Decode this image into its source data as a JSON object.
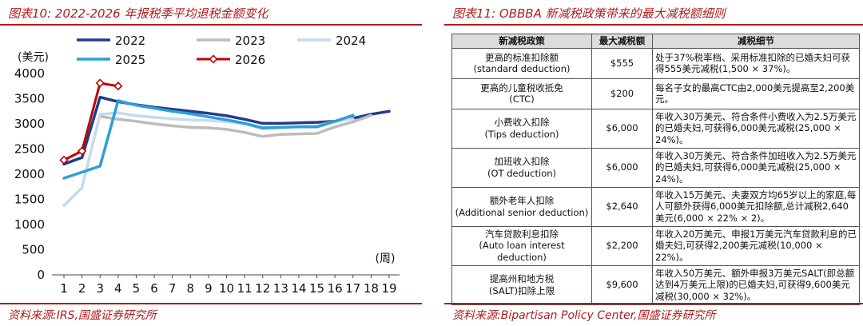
{
  "left": {
    "title": "图表10: 2022-2026 年报税季平均退税金额变化",
    "source": "资料来源:IRS,国盛证券研究所"
  },
  "right": {
    "title": "图表11: OBBBA 新减税政策带来的最大减税额细则",
    "source": "资料来源:Bipartisan Policy Center,国盛证券研究所",
    "table": {
      "headers": [
        "新减税政策",
        "最大减税额",
        "减税细节"
      ],
      "rows": [
        {
          "policy": [
            "更高的标准扣除额",
            "(standard deduction)"
          ],
          "amount": "$555",
          "detail": "处于37%税率档、采用标准扣除的已婚夫妇可获得555美元减税(1,500 × 37%)。"
        },
        {
          "policy": [
            "更高的儿童税收抵免",
            "(CTC)"
          ],
          "amount": "$200",
          "detail": "每名子女的最高CTC由2,000美元提高至2,200美元。"
        },
        {
          "policy": [
            "小费收入扣除",
            "(Tips deduction)"
          ],
          "amount": "$6,000",
          "detail": "年收入30万美元、符合条件小费收入为2.5万美元的已婚夫妇,可获得6,000美元减税(25,000 × 24%)。"
        },
        {
          "policy": [
            "加班收入扣除",
            "(OT deduction)"
          ],
          "amount": "$6,000",
          "detail": "年收入30万美元、符合条件加班收入为2.5万美元的已婚夫妇,可获得6,000美元减税(25,000 × 24%)。"
        },
        {
          "policy": [
            "额外老年人扣除",
            "(Additional senior deduction)"
          ],
          "amount": "$2,640",
          "detail": "年收入15万美元、夫妻双方均65岁以上的家庭,每人可额外获得6,000美元扣除额,总计减税2,640美元(6,000 × 22% × 2)。"
        },
        {
          "policy": [
            "汽车贷款利息扣除",
            "(Auto loan interest",
            "deduction)"
          ],
          "amount": "$2,200",
          "detail": "年收入20万美元、申报1万美元汽车贷款利息的已婚夫妇,可获得2,200美元减税(10,000 × 22%)。"
        },
        {
          "policy": [
            "提高州和地方税",
            "(SALT)扣除上限"
          ],
          "amount": "$9,600",
          "detail": "年收入50万美元、额外申报3万美元SALT(即总额达到4万美元上限)的已婚夫妇,可获得9,600美元减税(30,000 × 32%)。"
        }
      ]
    }
  },
  "chart_data": {
    "type": "line",
    "title": "2022-2026 年报税季平均退税金额变化",
    "ylabel": "(美元)",
    "xlabel": "(周)",
    "xlim": [
      1,
      19
    ],
    "ylim": [
      0,
      4000
    ],
    "yticks": [
      0,
      500,
      1000,
      1500,
      2000,
      2500,
      3000,
      3500,
      4000
    ],
    "x": [
      1,
      2,
      3,
      4,
      5,
      6,
      7,
      8,
      9,
      10,
      11,
      12,
      13,
      14,
      15,
      16,
      17,
      18,
      19
    ],
    "series": [
      {
        "name": "2022",
        "color": "#1f3d8a",
        "width": 3.5,
        "marker": "none",
        "values": [
          2200,
          2330,
          3530,
          3440,
          3380,
          3330,
          3290,
          3250,
          3210,
          3160,
          3090,
          3010,
          3010,
          3020,
          3030,
          3050,
          3110,
          3190,
          3250
        ]
      },
      {
        "name": "2023",
        "color": "#bcbcbc",
        "width": 3.5,
        "marker": "none",
        "values": [
          null,
          null,
          3150,
          3090,
          3050,
          3000,
          2960,
          2930,
          2920,
          2890,
          2830,
          2750,
          2790,
          2800,
          2810,
          2940,
          3040,
          3170,
          null
        ]
      },
      {
        "name": "2024",
        "color": "#c6daec",
        "width": 3.5,
        "marker": "none",
        "values": [
          1380,
          1730,
          3190,
          3220,
          3160,
          3130,
          3100,
          3080,
          3070,
          3040,
          3000,
          2900,
          2920,
          2950,
          2960,
          3050,
          3100,
          null,
          null
        ]
      },
      {
        "name": "2025",
        "color": "#2d9fd6",
        "width": 3.5,
        "marker": "none",
        "values": [
          1920,
          2040,
          2160,
          3460,
          3370,
          3310,
          3250,
          3200,
          3140,
          3080,
          3010,
          2920,
          2930,
          2940,
          2940,
          3050,
          3170,
          null,
          null
        ]
      },
      {
        "name": "2026",
        "color": "#c00000",
        "width": 3,
        "marker": "diamond",
        "values": [
          2280,
          2460,
          3810,
          3750,
          null,
          null,
          null,
          null,
          null,
          null,
          null,
          null,
          null,
          null,
          null,
          null,
          null,
          null,
          null
        ]
      }
    ],
    "legend": "top"
  }
}
